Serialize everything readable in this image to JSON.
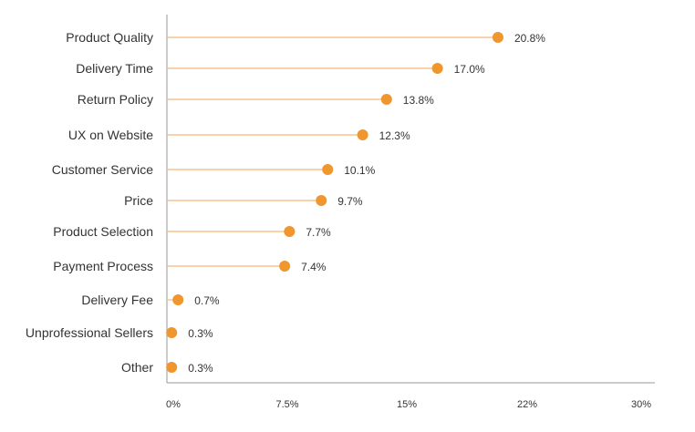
{
  "chart_data": {
    "type": "lollipop",
    "orientation": "horizontal",
    "title": "",
    "xlabel": "",
    "ylabel": "",
    "xlim": [
      0,
      30
    ],
    "x_ticks": [
      0,
      7.5,
      15,
      22,
      30
    ],
    "x_tick_labels": [
      "0%",
      "7.5%",
      "15%",
      "22%",
      "30%"
    ],
    "grid": false,
    "legend": "none",
    "categories": [
      "Product Quality",
      "Delivery Time",
      "Return Policy",
      "UX on Website",
      "Customer Service",
      "Price",
      "Product Selection",
      "Payment Process",
      "Delivery Fee",
      "Unprofessional Sellers",
      "Other"
    ],
    "values": [
      20.8,
      17.0,
      13.8,
      12.3,
      10.1,
      9.7,
      7.7,
      7.4,
      0.7,
      0.3,
      0.3
    ],
    "value_labels": [
      "20.8%",
      "17.0%",
      "13.8%",
      "12.3%",
      "10.1%",
      "9.7%",
      "7.7%",
      "7.4%",
      "0.7%",
      "0.3%",
      "0.3%"
    ],
    "colors": {
      "marker": "#F0962E",
      "stem": "#F5B77A",
      "axis": "#9A9A9A",
      "text": "#333333"
    }
  }
}
